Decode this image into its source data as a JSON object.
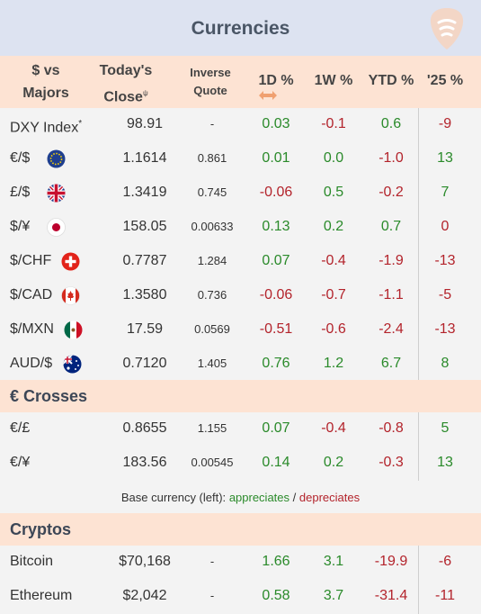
{
  "title": "Currencies",
  "headers": {
    "name_line1": "$ vs",
    "name_line2": "Majors",
    "close_line1": "Today's",
    "close_line2": "Close",
    "close_sup": "ψ",
    "inverse_line1": "Inverse",
    "inverse_line2": "Quote",
    "d1": "1D %",
    "w1": "1W %",
    "ytd": "YTD %",
    "y25": "'25 %"
  },
  "majors": [
    {
      "name": "DXY Index",
      "sup": "*",
      "close": "98.91",
      "inverse": "-",
      "d1": "0.03",
      "w1": "-0.1",
      "ytd": "0.6",
      "y25": "-9",
      "flag": "none"
    },
    {
      "name": "€/$",
      "close": "1.1614",
      "inverse": "0.861",
      "d1": "0.01",
      "w1": "0.0",
      "ytd": "-1.0",
      "y25": "13",
      "flag": "eu-flag-icon"
    },
    {
      "name": "£/$",
      "close": "1.3419",
      "inverse": "0.745",
      "d1": "-0.06",
      "w1": "0.5",
      "ytd": "-0.2",
      "y25": "7",
      "flag": "uk-flag-icon"
    },
    {
      "name": "$/¥",
      "close": "158.05",
      "inverse": "0.00633",
      "d1": "0.13",
      "w1": "0.2",
      "ytd": "0.7",
      "y25": "0",
      "flag": "japan-flag-icon"
    },
    {
      "name": "$/CHF",
      "close": "0.7787",
      "inverse": "1.284",
      "d1": "0.07",
      "w1": "-0.4",
      "ytd": "-1.9",
      "y25": "-13",
      "flag": "swiss-flag-icon"
    },
    {
      "name": "$/CAD",
      "close": "1.3580",
      "inverse": "0.736",
      "d1": "-0.06",
      "w1": "-0.7",
      "ytd": "-1.1",
      "y25": "-5",
      "flag": "canada-flag-icon"
    },
    {
      "name": "$/MXN",
      "close": "17.59",
      "inverse": "0.0569",
      "d1": "-0.51",
      "w1": "-0.6",
      "ytd": "-2.4",
      "y25": "-13",
      "flag": "mexico-flag-icon"
    },
    {
      "name": "AUD/$",
      "close": "0.7120",
      "inverse": "1.405",
      "d1": "0.76",
      "w1": "1.2",
      "ytd": "6.7",
      "y25": "8",
      "flag": "australia-flag-icon"
    }
  ],
  "crosses_label": "€ Crosses",
  "crosses": [
    {
      "name": "€/£",
      "close": "0.8655",
      "inverse": "1.155",
      "d1": "0.07",
      "w1": "-0.4",
      "ytd": "-0.8",
      "y25": "5"
    },
    {
      "name": "€/¥",
      "close": "183.56",
      "inverse": "0.00545",
      "d1": "0.14",
      "w1": "0.2",
      "ytd": "-0.3",
      "y25": "13"
    }
  ],
  "legend": {
    "prefix": "Base currency (left):",
    "appreciates": "appreciates",
    "sep": "/",
    "depreciates": "depreciates"
  },
  "cryptos_label": "Cryptos",
  "cryptos": [
    {
      "name": "Bitcoin",
      "close": "$70,168",
      "inverse": "-",
      "d1": "1.66",
      "w1": "3.1",
      "ytd": "-19.9",
      "y25": "-6"
    },
    {
      "name": "Ethereum",
      "close": "$2,042",
      "inverse": "-",
      "d1": "0.58",
      "w1": "3.7",
      "ytd": "-31.4",
      "y25": "-11"
    }
  ],
  "colors": {
    "positive": "#2a8a2a",
    "negative": "#b3232b",
    "header_bg": "#fde3d3",
    "title_bg": "#dde3f1"
  }
}
